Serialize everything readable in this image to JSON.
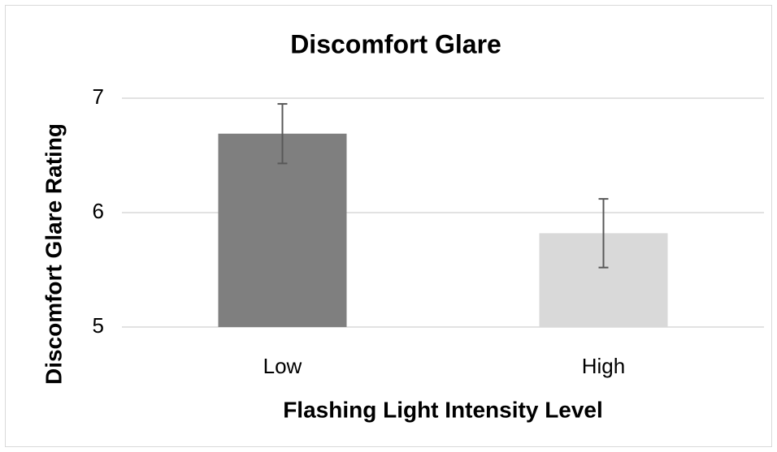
{
  "chart_data": {
    "type": "bar",
    "title": "Discomfort Glare",
    "x_label": "Flashing Light Intensity Level",
    "y_label": "Discomfort Glare Rating",
    "categories": [
      "Low",
      "High"
    ],
    "values": [
      6.69,
      5.82
    ],
    "errors": [
      0.26,
      0.3
    ],
    "colors": [
      "#7f7f7f",
      "#d9d9d9"
    ],
    "error_color": "#595959",
    "ylim": [
      5,
      7
    ],
    "yticks": [
      5,
      6,
      7
    ],
    "grid": true
  }
}
